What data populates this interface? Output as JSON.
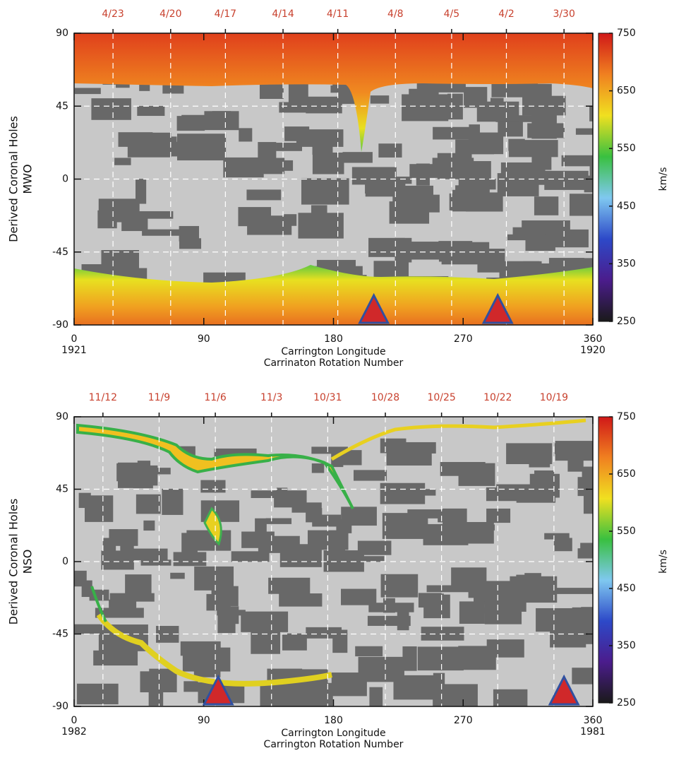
{
  "chart_data": [
    {
      "type": "coronal-map",
      "ylabel": "Derived Coronal Holes",
      "ylabel2": "MWO",
      "xlabel": "Carrington Longitude",
      "xlabel2": "Carrinaton Rotation Number",
      "xlim": [
        0,
        360
      ],
      "xticks": [
        0,
        90,
        180,
        270,
        360
      ],
      "rotation_labels": [
        {
          "value": 0,
          "label": "1921"
        },
        {
          "value": 360,
          "label": "1920"
        }
      ],
      "ylim": [
        -90,
        90
      ],
      "yticks": [
        -90,
        -45,
        0,
        45,
        90
      ],
      "date_ticks": [
        {
          "value": 27,
          "label": "4/23"
        },
        {
          "value": 67,
          "label": "4/20"
        },
        {
          "value": 105,
          "label": "4/17"
        },
        {
          "value": 145,
          "label": "4/14"
        },
        {
          "value": 183,
          "label": "4/11"
        },
        {
          "value": 223,
          "label": "4/8"
        },
        {
          "value": 262,
          "label": "4/5"
        },
        {
          "value": 300,
          "label": "4/2"
        },
        {
          "value": 340,
          "label": "3/30"
        }
      ],
      "date_color": "#c8412e",
      "grid": true,
      "triangle_longitudes": [
        208,
        294
      ],
      "triangle_color": "#d0282a",
      "colorbar_label": "km/s",
      "clim": [
        250,
        750
      ],
      "cticks": [
        250,
        350,
        450,
        550,
        650,
        750
      ],
      "colorscale": [
        "#1a1a1a",
        "#4b1c8c",
        "#2d49c8",
        "#7fc8f0",
        "#39c040",
        "#f0e020",
        "#f08020",
        "#d01818"
      ]
    },
    {
      "type": "coronal-map",
      "ylabel": "Derived Coronal Holes",
      "ylabel2": "NSO",
      "xlabel": "Carrington Longitude",
      "xlabel2": "Carrington Rotation Number",
      "xlim": [
        0,
        360
      ],
      "xticks": [
        0,
        90,
        180,
        270,
        360
      ],
      "rotation_labels": [
        {
          "value": 0,
          "label": "1982"
        },
        {
          "value": 360,
          "label": "1981"
        }
      ],
      "ylim": [
        -90,
        90
      ],
      "yticks": [
        -90,
        -45,
        0,
        45,
        90
      ],
      "date_ticks": [
        {
          "value": 20,
          "label": "11/12"
        },
        {
          "value": 59,
          "label": "11/9"
        },
        {
          "value": 98,
          "label": "11/6"
        },
        {
          "value": 137,
          "label": "11/3"
        },
        {
          "value": 176,
          "label": "10/31"
        },
        {
          "value": 216,
          "label": "10/28"
        },
        {
          "value": 255,
          "label": "10/25"
        },
        {
          "value": 294,
          "label": "10/22"
        },
        {
          "value": 333,
          "label": "10/19"
        }
      ],
      "date_color": "#c8412e",
      "grid": true,
      "triangle_longitudes": [
        100,
        340
      ],
      "triangle_color": "#d0282a",
      "colorbar_label": "km/s",
      "clim": [
        250,
        750
      ],
      "cticks": [
        250,
        350,
        450,
        550,
        650,
        750
      ],
      "colorscale": [
        "#1a1a1a",
        "#4b1c8c",
        "#2d49c8",
        "#7fc8f0",
        "#39c040",
        "#f0e020",
        "#f08020",
        "#d01818"
      ]
    }
  ]
}
